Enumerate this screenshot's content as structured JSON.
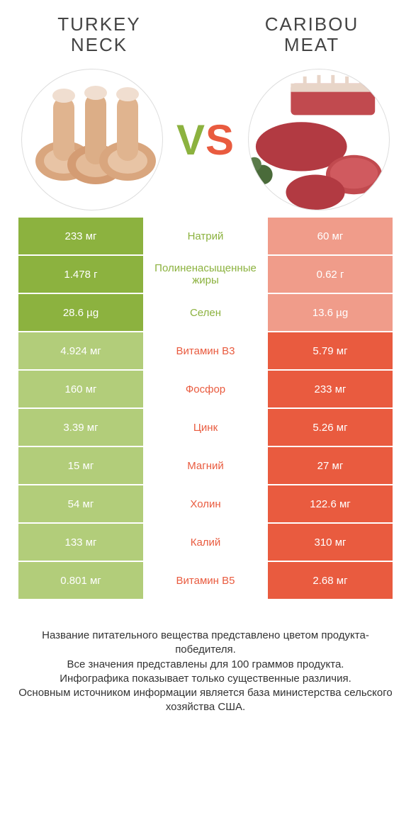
{
  "left_title": "TURKEY NECK",
  "right_title": "CARIBOU MEAT",
  "vs_v": "V",
  "vs_s": "S",
  "colors": {
    "left_win": "#8cb23f",
    "left_lose": "#b2cd7a",
    "right_win": "#e95b3f",
    "right_lose": "#f09c8a",
    "mid_left": "#8cb23f",
    "mid_right": "#e95b3f",
    "row_bg": "#ffffff"
  },
  "rows": [
    {
      "label": "Натрий",
      "left": "233 мг",
      "right": "60 мг",
      "winner": "left"
    },
    {
      "label": "Полиненасыщенные жиры",
      "left": "1.478 г",
      "right": "0.62 г",
      "winner": "left"
    },
    {
      "label": "Селен",
      "left": "28.6 µg",
      "right": "13.6 µg",
      "winner": "left"
    },
    {
      "label": "Витамин B3",
      "left": "4.924 мг",
      "right": "5.79 мг",
      "winner": "right"
    },
    {
      "label": "Фосфор",
      "left": "160 мг",
      "right": "233 мг",
      "winner": "right"
    },
    {
      "label": "Цинк",
      "left": "3.39 мг",
      "right": "5.26 мг",
      "winner": "right"
    },
    {
      "label": "Магний",
      "left": "15 мг",
      "right": "27 мг",
      "winner": "right"
    },
    {
      "label": "Холин",
      "left": "54 мг",
      "right": "122.6 мг",
      "winner": "right"
    },
    {
      "label": "Калий",
      "left": "133 мг",
      "right": "310 мг",
      "winner": "right"
    },
    {
      "label": "Витамин B5",
      "left": "0.801 мг",
      "right": "2.68 мг",
      "winner": "right"
    }
  ],
  "footer_lines": [
    "Название питательного вещества представлено цветом продукта-победителя.",
    "Все значения представлены для 100 граммов продукта.",
    "Инфографика показывает только существенные различия.",
    "Основным источником информации является база министерства сельского хозяйства США."
  ]
}
